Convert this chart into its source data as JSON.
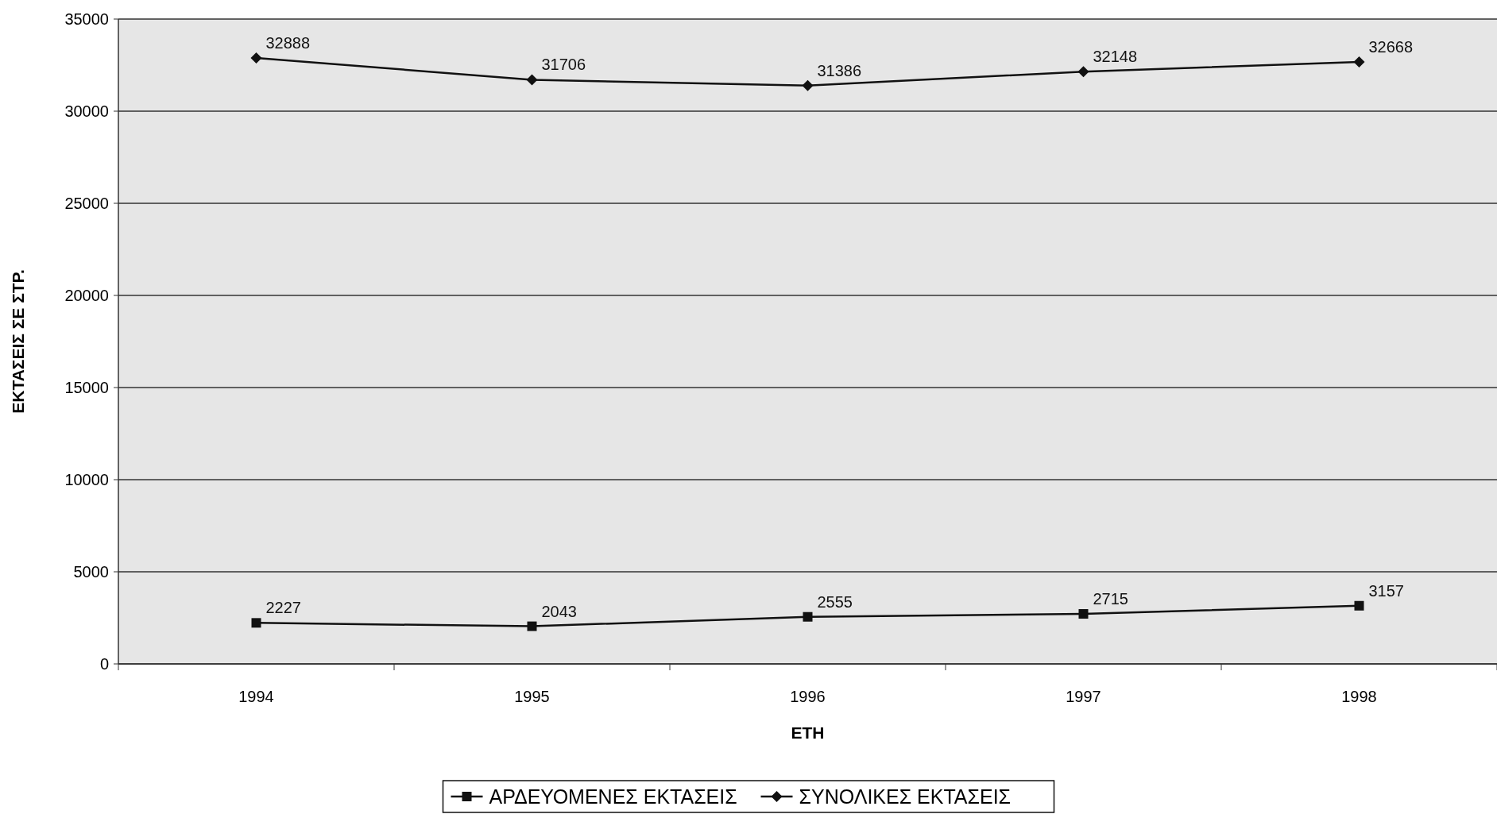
{
  "chart_data": {
    "type": "line",
    "xlabel": "ΕΤΗ",
    "ylabel": "ΕΚΤΑΣΕΙΣ ΣΕ ΣΤΡ.",
    "categories": [
      "1994",
      "1995",
      "1996",
      "1997",
      "1998"
    ],
    "series": [
      {
        "name": "ΑΡΔΕΥΟΜΕΝΕΣ ΕΚΤΑΣΕΙΣ",
        "color": "#111111",
        "marker": "square",
        "values": [
          2227,
          2043,
          2555,
          2715,
          3157
        ]
      },
      {
        "name": "ΣΥΝΟΛΙΚΕΣ ΕΚΤΑΣΕΙΣ",
        "color": "#111111",
        "marker": "diamond",
        "values": [
          32888,
          31706,
          31386,
          32148,
          32668
        ]
      }
    ],
    "ylim": [
      0,
      35000
    ],
    "yticks": [
      0,
      5000,
      10000,
      15000,
      20000,
      25000,
      30000,
      35000
    ],
    "grid": "y",
    "legend": "bottom",
    "data_labels": true,
    "line_style": "solid"
  }
}
